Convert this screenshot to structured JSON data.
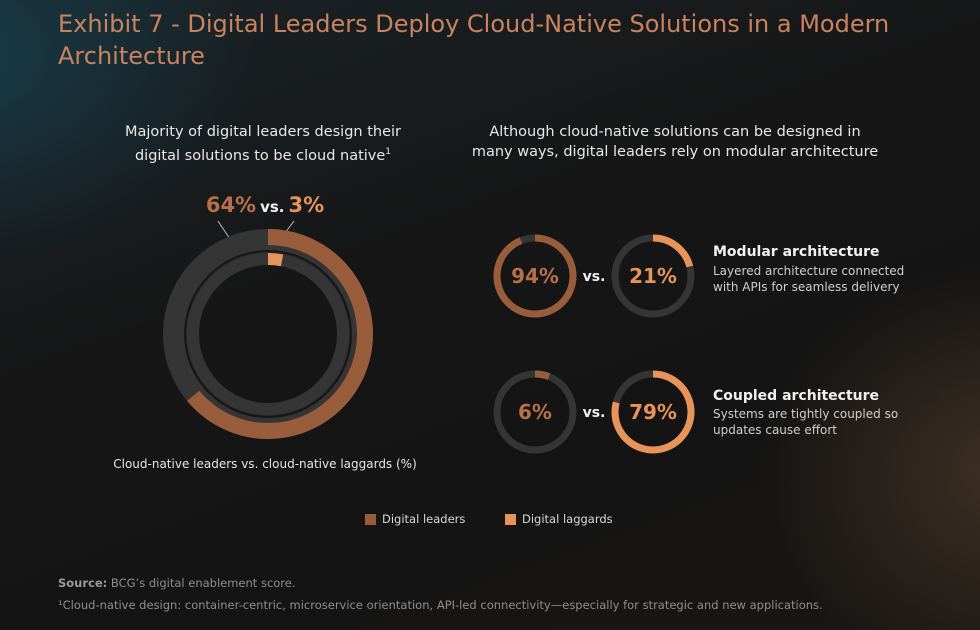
{
  "title": "Exhibit 7 - Digital Leaders Deploy Cloud-Native Solutions in a Modern Architecture",
  "left": {
    "subhead": "Majority of digital leaders design their digital solutions to be cloud native",
    "footnote_mark": "1",
    "leaders_label": "64%",
    "vs": "vs.",
    "laggards_label": "3%",
    "caption": "Cloud-native leaders vs. cloud-native laggards (%)"
  },
  "right": {
    "subhead": "Although cloud-native solutions can be designed in many ways, digital leaders rely on modular architecture",
    "rows": [
      {
        "leader_label": "94%",
        "vs": "vs.",
        "laggard_label": "21%",
        "title": "Modular architecture",
        "desc": "Layered architecture connected with APIs for seamless delivery"
      },
      {
        "leader_label": "6%",
        "vs": "vs.",
        "laggard_label": "79%",
        "title": "Coupled architecture",
        "desc": "Systems are tightly coupled so updates cause effort"
      }
    ]
  },
  "legend": {
    "leaders": "Digital leaders",
    "laggards": "Digital laggards"
  },
  "source_label": "Source:",
  "source_text": "BCG’s digital enablement score.",
  "footnote": "¹Cloud-native design: container-centric, microservice orientation, API-led connectivity—especially for strategic and new applications.",
  "colors": {
    "leaders": "#9a5d3c",
    "laggards": "#e8935a",
    "track": "#353535"
  },
  "chart_data": [
    {
      "type": "pie",
      "title": "Majority of digital leaders design their digital solutions to be cloud native",
      "xlabel": "Cloud-native leaders vs. cloud-native laggards (%)",
      "series": [
        {
          "name": "Digital leaders",
          "values": [
            64
          ]
        },
        {
          "name": "Digital laggards",
          "values": [
            3
          ]
        }
      ],
      "legend": "bottom"
    },
    {
      "type": "pie",
      "title": "Although cloud-native solutions can be designed in many ways, digital leaders rely on modular architecture",
      "categories": [
        "Modular architecture",
        "Coupled architecture"
      ],
      "series": [
        {
          "name": "Digital leaders",
          "values": [
            94,
            6
          ]
        },
        {
          "name": "Digital laggards",
          "values": [
            21,
            79
          ]
        }
      ],
      "legend": "bottom"
    }
  ]
}
